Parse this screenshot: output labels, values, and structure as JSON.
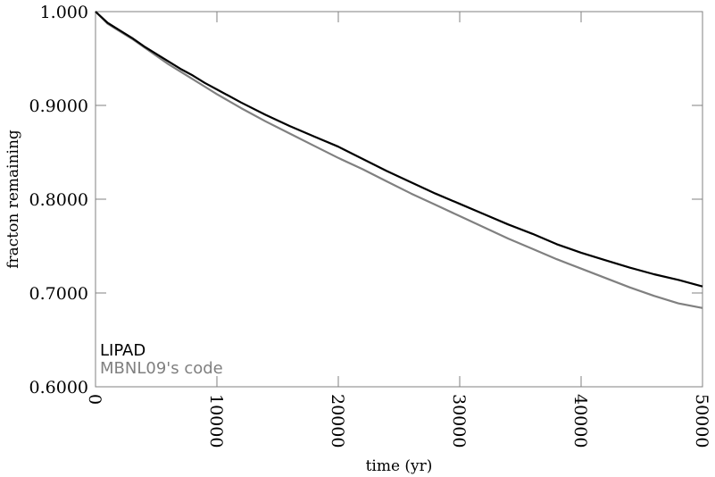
{
  "chart_data": {
    "type": "line",
    "title": "",
    "xlabel": "time (yr)",
    "ylabel": "fracton remaining",
    "xlim": [
      0,
      50000
    ],
    "ylim": [
      0.6,
      1.0
    ],
    "grid": false,
    "legend_placement": "bottom-left",
    "x_ticks": [
      {
        "value": 0,
        "label": "0"
      },
      {
        "value": 10000,
        "label": "10000"
      },
      {
        "value": 20000,
        "label": "20000"
      },
      {
        "value": 30000,
        "label": "30000"
      },
      {
        "value": 40000,
        "label": "40000"
      },
      {
        "value": 50000,
        "label": "50000"
      }
    ],
    "y_ticks": [
      {
        "value": 1.0,
        "label": "1.000"
      },
      {
        "value": 0.9,
        "label": "0.9000"
      },
      {
        "value": 0.8,
        "label": "0.8000"
      },
      {
        "value": 0.7,
        "label": "0.7000"
      },
      {
        "value": 0.6,
        "label": "0.6000"
      }
    ],
    "x": [
      0,
      1000,
      2000,
      3000,
      4000,
      5000,
      6000,
      7000,
      8000,
      9000,
      10000,
      12000,
      14000,
      16000,
      18000,
      20000,
      22000,
      24000,
      26000,
      28000,
      30000,
      32000,
      34000,
      36000,
      38000,
      40000,
      42000,
      44000,
      46000,
      48000,
      50000
    ],
    "series": [
      {
        "name": "LIPAD",
        "color": "#000000",
        "values": [
          1.0,
          0.988,
          0.98,
          0.972,
          0.963,
          0.955,
          0.947,
          0.939,
          0.932,
          0.924,
          0.917,
          0.903,
          0.89,
          0.878,
          0.867,
          0.856,
          0.843,
          0.83,
          0.818,
          0.806,
          0.795,
          0.784,
          0.773,
          0.763,
          0.752,
          0.743,
          0.735,
          0.727,
          0.72,
          0.714,
          0.707
        ]
      },
      {
        "name": "MBNL09's code",
        "color": "#808080",
        "values": [
          1.0,
          0.987,
          0.979,
          0.971,
          0.962,
          0.953,
          0.944,
          0.936,
          0.928,
          0.92,
          0.912,
          0.897,
          0.883,
          0.87,
          0.857,
          0.844,
          0.832,
          0.819,
          0.806,
          0.794,
          0.782,
          0.77,
          0.758,
          0.747,
          0.736,
          0.726,
          0.716,
          0.706,
          0.697,
          0.689,
          0.684
        ]
      }
    ]
  }
}
